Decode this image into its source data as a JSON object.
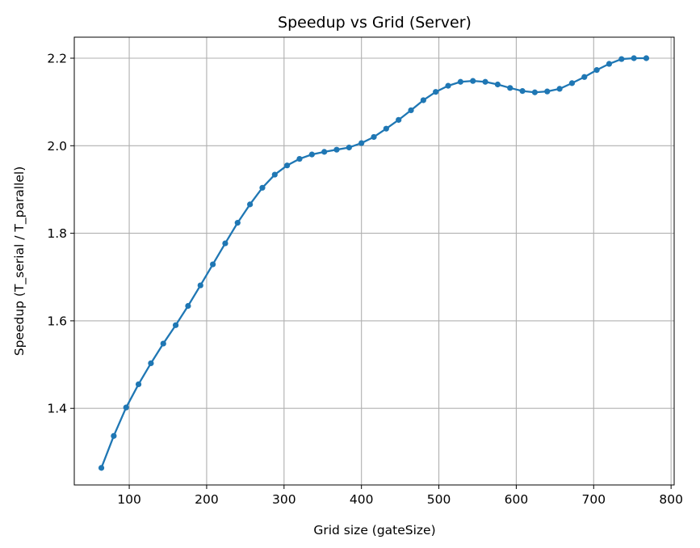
{
  "colors": {
    "line": "#1f77b4",
    "grid": "#b0b0b0",
    "axes": "#000000"
  },
  "chart_data": {
    "type": "line",
    "title": "Speedup vs Grid (Server)",
    "xlabel": "Grid size (gateSize)",
    "ylabel": "Speedup (T_serial / T_parallel)",
    "xlim": [
      29,
      804
    ],
    "ylim": [
      1.225,
      2.248
    ],
    "xticks": [
      100,
      200,
      300,
      400,
      500,
      600,
      700,
      800
    ],
    "xtick_labels": [
      "100",
      "200",
      "300",
      "400",
      "500",
      "600",
      "700",
      "800"
    ],
    "yticks": [
      1.4,
      1.6,
      1.8,
      2.0,
      2.2
    ],
    "ytick_labels": [
      "1.4",
      "1.6",
      "1.8",
      "2.0",
      "2.2"
    ],
    "grid": true,
    "marker": "circle",
    "series": [
      {
        "x": [
          64,
          80,
          96,
          112,
          128,
          144,
          160,
          176,
          192,
          208,
          224,
          240,
          256,
          272,
          288,
          304,
          320,
          336,
          352,
          368,
          384,
          400,
          416,
          432,
          448,
          464,
          480,
          496,
          512,
          528,
          544,
          560,
          576,
          592,
          608,
          624,
          640,
          656,
          672,
          688,
          704,
          720,
          736,
          752,
          768
        ],
        "y": [
          1.264,
          1.337,
          1.402,
          1.455,
          1.503,
          1.548,
          1.59,
          1.634,
          1.681,
          1.729,
          1.777,
          1.824,
          1.866,
          1.904,
          1.934,
          1.955,
          1.97,
          1.98,
          1.986,
          1.991,
          1.996,
          2.006,
          2.02,
          2.039,
          2.059,
          2.081,
          2.104,
          2.123,
          2.137,
          2.146,
          2.148,
          2.146,
          2.14,
          2.132,
          2.125,
          2.122,
          2.124,
          2.13,
          2.143,
          2.157,
          2.173,
          2.187,
          2.198,
          2.2,
          2.2
        ]
      }
    ]
  }
}
